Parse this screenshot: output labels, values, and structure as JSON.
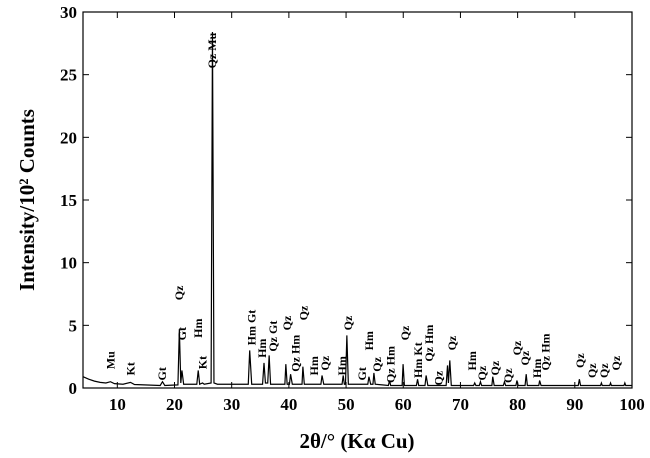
{
  "chart_data": {
    "type": "line",
    "xlabel": "2θ/° (Kα Cu)",
    "ylabel": "Intensity/10² Counts",
    "color": "#000000",
    "xlim": [
      4,
      100
    ],
    "xticks": [
      10,
      20,
      30,
      40,
      50,
      60,
      70,
      80,
      90,
      100
    ],
    "ylim": [
      0,
      30
    ],
    "yticks": [
      0,
      5,
      10,
      15,
      20,
      25,
      30
    ],
    "x": [
      4,
      5,
      6,
      7,
      8,
      8.8,
      9.5,
      11,
      12.3,
      13,
      17.5,
      17.9,
      18.3,
      20.6,
      20.85,
      21.1,
      21.3,
      21.6,
      23.9,
      24.15,
      24.4,
      24.9,
      25.2,
      26.4,
      26.64,
      26.9,
      27.5,
      32.9,
      33.15,
      33.5,
      35.4,
      35.65,
      35.9,
      36.3,
      36.55,
      36.8,
      39.3,
      39.47,
      39.7,
      40.1,
      40.3,
      40.6,
      42.3,
      42.45,
      42.7,
      45.6,
      45.8,
      46.1,
      49.3,
      49.5,
      49.7,
      49.9,
      50.14,
      50.4,
      53.8,
      54,
      54.3,
      54.7,
      54.87,
      55.1,
      57.4,
      57.6,
      57.8,
      59.8,
      59.97,
      60.2,
      62.3,
      62.5,
      62.7,
      63.8,
      64,
      64.3,
      67.5,
      67.74,
      67.9,
      68.14,
      68.4,
      72.3,
      72.5,
      72.7,
      73.3,
      73.5,
      73.7,
      75.5,
      75.65,
      75.9,
      77.5,
      77.7,
      77.9,
      79.7,
      79.88,
      80.1,
      81.3,
      81.5,
      81.7,
      83.7,
      83.85,
      84.1,
      90.6,
      90.8,
      91,
      94.5,
      94.65,
      94.8,
      96.1,
      96.25,
      96.4,
      98.6,
      98.75,
      98.9,
      100
    ],
    "values": [
      0.9,
      0.7,
      0.55,
      0.45,
      0.4,
      0.5,
      0.35,
      0.3,
      0.45,
      0.28,
      0.2,
      0.5,
      0.2,
      0.25,
      4.7,
      0.4,
      1.4,
      0.3,
      0.3,
      1.4,
      0.3,
      0.4,
      0.3,
      0.4,
      28.4,
      0.4,
      0.3,
      0.3,
      3.0,
      0.3,
      0.3,
      2.0,
      0.4,
      0.4,
      2.6,
      0.3,
      0.3,
      1.9,
      0.3,
      0.3,
      1.1,
      0.3,
      0.3,
      1.7,
      0.3,
      0.3,
      1.0,
      0.3,
      0.3,
      1.0,
      0.3,
      0.3,
      4.2,
      0.3,
      0.3,
      0.9,
      0.3,
      0.3,
      1.2,
      0.3,
      0.2,
      0.6,
      0.2,
      0.2,
      1.9,
      0.2,
      0.2,
      0.7,
      0.2,
      0.2,
      1.0,
      0.2,
      0.2,
      1.8,
      0.4,
      2.2,
      0.2,
      0.2,
      0.4,
      0.2,
      0.2,
      0.5,
      0.2,
      0.2,
      0.9,
      0.2,
      0.2,
      0.5,
      0.2,
      0.2,
      0.6,
      0.2,
      0.2,
      1.1,
      0.2,
      0.2,
      0.6,
      0.2,
      0.2,
      0.7,
      0.2,
      0.2,
      0.4,
      0.2,
      0.2,
      0.4,
      0.2,
      0.2,
      0.4,
      0.2,
      0.2
    ],
    "annotations": [
      {
        "text": "Mu",
        "x": 8.8,
        "y": 1.5
      },
      {
        "text": "Kt",
        "x": 12.3,
        "y": 1.0
      },
      {
        "text": "Gt",
        "x": 17.8,
        "y": 0.6
      },
      {
        "text": "Qz",
        "x": 20.8,
        "y": 7.0
      },
      {
        "text": "Gt",
        "x": 21.3,
        "y": 3.8
      },
      {
        "text": "Hm",
        "x": 24.1,
        "y": 4.0
      },
      {
        "text": "Kt",
        "x": 24.9,
        "y": 1.5
      },
      {
        "text": "Qz Mu",
        "x": 26.6,
        "y": 25.5
      },
      {
        "text": "Hm Gt",
        "x": 33.5,
        "y": 3.4
      },
      {
        "text": "Hm",
        "x": 35.3,
        "y": 2.4
      },
      {
        "text": "Qz Gt",
        "x": 37.2,
        "y": 2.9
      },
      {
        "text": "Qz",
        "x": 39.7,
        "y": 4.6
      },
      {
        "text": "Qz Hm",
        "x": 41.2,
        "y": 1.3
      },
      {
        "text": "Qz",
        "x": 42.6,
        "y": 5.4
      },
      {
        "text": "Hm",
        "x": 44.4,
        "y": 1.0
      },
      {
        "text": "Qz",
        "x": 46.3,
        "y": 1.4
      },
      {
        "text": "Hm",
        "x": 49.3,
        "y": 1.0
      },
      {
        "text": "Qz",
        "x": 50.3,
        "y": 4.6
      },
      {
        "text": "Gt",
        "x": 52.8,
        "y": 0.6
      },
      {
        "text": "Hm",
        "x": 54.0,
        "y": 3.0
      },
      {
        "text": "Qz",
        "x": 55.4,
        "y": 1.3
      },
      {
        "text": "Qz Hm",
        "x": 57.8,
        "y": 0.4
      },
      {
        "text": "Qz",
        "x": 60.3,
        "y": 3.8
      },
      {
        "text": "Hm Kt",
        "x": 62.6,
        "y": 0.8
      },
      {
        "text": "Qz Hm",
        "x": 64.5,
        "y": 2.1
      },
      {
        "text": "Qz",
        "x": 66.2,
        "y": 0.2
      },
      {
        "text": "Qz",
        "x": 68.5,
        "y": 3.0
      },
      {
        "text": "Hm",
        "x": 72.0,
        "y": 1.4
      },
      {
        "text": "Qz",
        "x": 73.8,
        "y": 0.6
      },
      {
        "text": "Qz",
        "x": 76.0,
        "y": 1.0
      },
      {
        "text": "Qz",
        "x": 78.3,
        "y": 0.4
      },
      {
        "text": "Qz",
        "x": 79.9,
        "y": 2.6
      },
      {
        "text": "Qz",
        "x": 81.3,
        "y": 1.8
      },
      {
        "text": "Hm",
        "x": 83.4,
        "y": 0.8
      },
      {
        "text": "Qz Hm",
        "x": 84.9,
        "y": 1.4
      },
      {
        "text": "Qz",
        "x": 90.9,
        "y": 1.6
      },
      {
        "text": "Qz",
        "x": 93.0,
        "y": 0.8
      },
      {
        "text": "Qz",
        "x": 95.1,
        "y": 0.8
      },
      {
        "text": "Qz",
        "x": 97.2,
        "y": 1.4
      }
    ]
  }
}
